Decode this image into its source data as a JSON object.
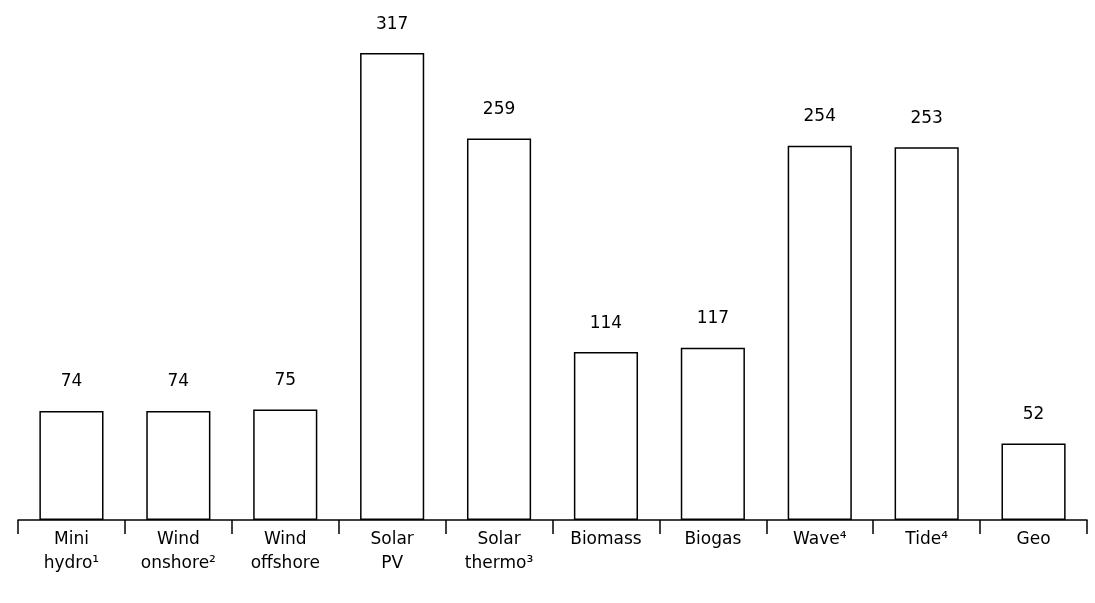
{
  "chart_data": {
    "type": "bar",
    "categories": [
      "Mini\nhydro¹",
      "Wind\nonshore²",
      "Wind\noffshore",
      "Solar\nPV",
      "Solar\nthermo³",
      "Biomass",
      "Biogas",
      "Wave⁴",
      "Tide⁴",
      "Geo"
    ],
    "values": [
      74,
      74,
      75,
      317,
      259,
      114,
      117,
      254,
      253,
      52
    ],
    "color": "#ffffff",
    "data_labels": true,
    "grid": false
  }
}
